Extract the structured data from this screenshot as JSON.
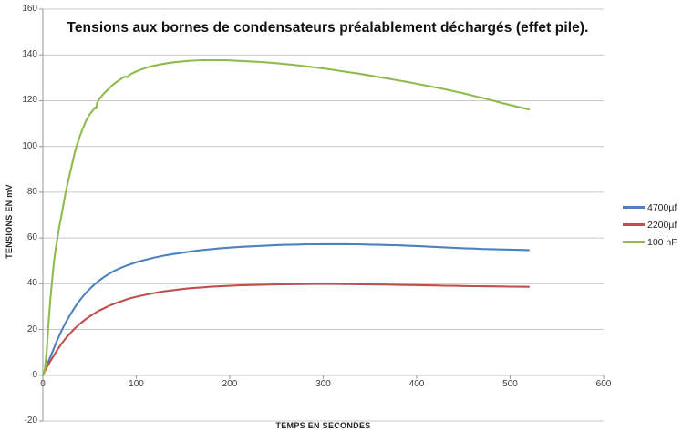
{
  "chart_data": {
    "type": "line",
    "title": "Tensions aux bornes de condensateurs préalablement déchargés (effet pile).",
    "xlabel": "TEMPS EN SECONDES",
    "ylabel": "TENSIONS EN mV",
    "xlim": [
      0,
      600
    ],
    "ylim": [
      -20,
      160
    ],
    "x_ticks": [
      0,
      100,
      200,
      300,
      400,
      500,
      600
    ],
    "y_ticks": [
      -20,
      0,
      20,
      40,
      60,
      80,
      100,
      120,
      140,
      160
    ],
    "grid": "horizontal",
    "legend_position": "right",
    "colors": {
      "gridline": "#c9c9c9",
      "axis": "#969696",
      "tick_text": "#3d3d3d",
      "title_text": "#111111"
    },
    "series": [
      {
        "name": "4700µf",
        "color": "#4f81bd",
        "points": [
          [
            0,
            0
          ],
          [
            5,
            5
          ],
          [
            10,
            10
          ],
          [
            15,
            15
          ],
          [
            20,
            19.5
          ],
          [
            25,
            23.5
          ],
          [
            30,
            27
          ],
          [
            35,
            30.2
          ],
          [
            40,
            33
          ],
          [
            45,
            35.5
          ],
          [
            50,
            37.7
          ],
          [
            55,
            39.6
          ],
          [
            60,
            41.3
          ],
          [
            65,
            42.8
          ],
          [
            70,
            44.1
          ],
          [
            75,
            45.3
          ],
          [
            80,
            46.3
          ],
          [
            85,
            47.2
          ],
          [
            90,
            48
          ],
          [
            95,
            48.7
          ],
          [
            100,
            49.4
          ],
          [
            110,
            50.5
          ],
          [
            120,
            51.5
          ],
          [
            130,
            52.3
          ],
          [
            140,
            53
          ],
          [
            150,
            53.6
          ],
          [
            160,
            54.2
          ],
          [
            170,
            54.7
          ],
          [
            180,
            55.1
          ],
          [
            190,
            55.5
          ],
          [
            200,
            55.8
          ],
          [
            210,
            56.1
          ],
          [
            220,
            56.3
          ],
          [
            230,
            56.5
          ],
          [
            240,
            56.7
          ],
          [
            250,
            56.9
          ],
          [
            260,
            57
          ],
          [
            270,
            57.1
          ],
          [
            280,
            57.2
          ],
          [
            290,
            57.25
          ],
          [
            300,
            57.3
          ],
          [
            310,
            57.3
          ],
          [
            320,
            57.3
          ],
          [
            330,
            57.25
          ],
          [
            340,
            57.2
          ],
          [
            350,
            57.1
          ],
          [
            360,
            57
          ],
          [
            370,
            56.9
          ],
          [
            380,
            56.8
          ],
          [
            390,
            56.6
          ],
          [
            400,
            56.5
          ],
          [
            410,
            56.3
          ],
          [
            420,
            56.1
          ],
          [
            430,
            55.9
          ],
          [
            440,
            55.7
          ],
          [
            450,
            55.5
          ],
          [
            460,
            55.4
          ],
          [
            470,
            55.2
          ],
          [
            480,
            55.1
          ],
          [
            490,
            55
          ],
          [
            500,
            54.9
          ],
          [
            510,
            54.8
          ],
          [
            520,
            54.7
          ]
        ]
      },
      {
        "name": "2200µf",
        "color": "#c0504d",
        "points": [
          [
            0,
            0
          ],
          [
            5,
            4
          ],
          [
            10,
            7.5
          ],
          [
            15,
            10.8
          ],
          [
            20,
            13.8
          ],
          [
            25,
            16.4
          ],
          [
            30,
            18.7
          ],
          [
            35,
            20.8
          ],
          [
            40,
            22.6
          ],
          [
            45,
            24.2
          ],
          [
            50,
            25.7
          ],
          [
            55,
            27
          ],
          [
            60,
            28.2
          ],
          [
            65,
            29.2
          ],
          [
            70,
            30.2
          ],
          [
            75,
            31
          ],
          [
            80,
            31.8
          ],
          [
            85,
            32.5
          ],
          [
            90,
            33.2
          ],
          [
            95,
            33.8
          ],
          [
            100,
            34.3
          ],
          [
            110,
            35.2
          ],
          [
            120,
            36
          ],
          [
            130,
            36.7
          ],
          [
            140,
            37.2
          ],
          [
            150,
            37.7
          ],
          [
            160,
            38.1
          ],
          [
            170,
            38.4
          ],
          [
            180,
            38.7
          ],
          [
            190,
            38.9
          ],
          [
            200,
            39.1
          ],
          [
            210,
            39.3
          ],
          [
            220,
            39.4
          ],
          [
            230,
            39.5
          ],
          [
            240,
            39.6
          ],
          [
            250,
            39.7
          ],
          [
            260,
            39.75
          ],
          [
            270,
            39.8
          ],
          [
            280,
            39.85
          ],
          [
            290,
            39.9
          ],
          [
            300,
            39.9
          ],
          [
            310,
            39.9
          ],
          [
            320,
            39.85
          ],
          [
            330,
            39.8
          ],
          [
            340,
            39.75
          ],
          [
            350,
            39.7
          ],
          [
            360,
            39.65
          ],
          [
            370,
            39.6
          ],
          [
            380,
            39.5
          ],
          [
            390,
            39.45
          ],
          [
            400,
            39.4
          ],
          [
            410,
            39.3
          ],
          [
            420,
            39.25
          ],
          [
            430,
            39.15
          ],
          [
            440,
            39.1
          ],
          [
            450,
            39
          ],
          [
            460,
            38.95
          ],
          [
            470,
            38.9
          ],
          [
            480,
            38.85
          ],
          [
            490,
            38.8
          ],
          [
            500,
            38.75
          ],
          [
            510,
            38.7
          ],
          [
            520,
            38.65
          ]
        ]
      },
      {
        "name": "100 nF",
        "color": "#8fba4d",
        "points": [
          [
            0,
            0
          ],
          [
            2,
            2
          ],
          [
            4,
            10
          ],
          [
            6,
            22
          ],
          [
            8,
            33
          ],
          [
            10,
            42
          ],
          [
            12,
            50
          ],
          [
            14,
            56
          ],
          [
            16,
            61
          ],
          [
            18,
            66
          ],
          [
            20,
            70
          ],
          [
            22,
            74.5
          ],
          [
            24,
            79
          ],
          [
            26,
            83
          ],
          [
            28,
            86.5
          ],
          [
            30,
            90
          ],
          [
            32,
            93.5
          ],
          [
            34,
            97
          ],
          [
            36,
            100
          ],
          [
            38,
            102.5
          ],
          [
            40,
            105
          ],
          [
            42,
            107
          ],
          [
            44,
            109
          ],
          [
            46,
            111
          ],
          [
            48,
            112.5
          ],
          [
            50,
            114
          ],
          [
            52,
            115
          ],
          [
            54,
            116
          ],
          [
            56,
            117
          ],
          [
            57,
            116.5
          ],
          [
            58,
            119
          ],
          [
            60,
            120.5
          ],
          [
            62,
            121.5
          ],
          [
            65,
            123
          ],
          [
            70,
            125
          ],
          [
            75,
            127
          ],
          [
            80,
            128.5
          ],
          [
            85,
            129.8
          ],
          [
            88,
            130.6
          ],
          [
            90,
            130.2
          ],
          [
            92,
            131
          ],
          [
            95,
            131.8
          ],
          [
            100,
            132.8
          ],
          [
            105,
            133.6
          ],
          [
            110,
            134.3
          ],
          [
            115,
            134.9
          ],
          [
            120,
            135.4
          ],
          [
            130,
            136.2
          ],
          [
            140,
            136.8
          ],
          [
            150,
            137.2
          ],
          [
            160,
            137.5
          ],
          [
            170,
            137.7
          ],
          [
            180,
            137.7
          ],
          [
            190,
            137.7
          ],
          [
            200,
            137.6
          ],
          [
            210,
            137.4
          ],
          [
            220,
            137.2
          ],
          [
            230,
            137
          ],
          [
            240,
            136.7
          ],
          [
            250,
            136.4
          ],
          [
            260,
            136
          ],
          [
            270,
            135.6
          ],
          [
            280,
            135.1
          ],
          [
            290,
            134.6
          ],
          [
            300,
            134.1
          ],
          [
            310,
            133.5
          ],
          [
            320,
            132.9
          ],
          [
            330,
            132.3
          ],
          [
            340,
            131.7
          ],
          [
            350,
            131
          ],
          [
            360,
            130.3
          ],
          [
            370,
            129.6
          ],
          [
            380,
            128.9
          ],
          [
            390,
            128.2
          ],
          [
            400,
            127.4
          ],
          [
            410,
            126.6
          ],
          [
            420,
            125.8
          ],
          [
            430,
            125
          ],
          [
            440,
            124.1
          ],
          [
            450,
            123.2
          ],
          [
            460,
            122.2
          ],
          [
            470,
            121.2
          ],
          [
            480,
            120.2
          ],
          [
            490,
            119.1
          ],
          [
            500,
            118.1
          ],
          [
            510,
            117.1
          ],
          [
            520,
            116.2
          ]
        ]
      }
    ]
  }
}
